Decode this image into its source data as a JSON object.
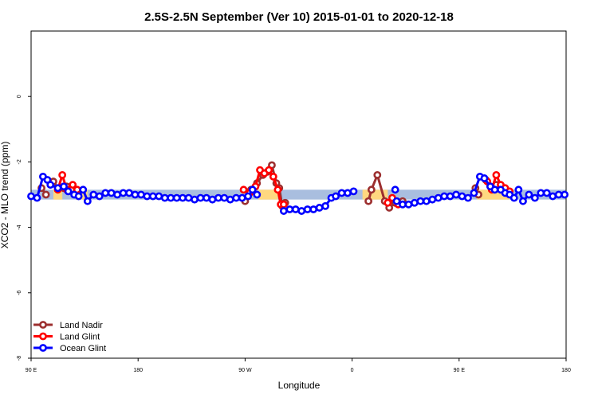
{
  "chart_data": {
    "type": "line",
    "title": "2.5S-2.5N September (Ver 10)   2015-01-01 to 2020-12-18",
    "xlabel": "Longitude",
    "ylabel": "XCO2 - MLO trend (ppm)",
    "xlim": [
      -90,
      270
    ],
    "ylim": [
      -8,
      2
    ],
    "x_ticks": [
      {
        "value": -90,
        "label": "90 E"
      },
      {
        "value": -18,
        "label": "180"
      },
      {
        "value": 54,
        "label": "90 W"
      },
      {
        "value": 126,
        "label": "0"
      },
      {
        "value": 198,
        "label": "90 E"
      },
      {
        "value": 270,
        "label": "180"
      }
    ],
    "y_ticks": [
      {
        "value": 0,
        "label": "0"
      },
      {
        "value": -2,
        "label": "-2"
      },
      {
        "value": -4,
        "label": "-4"
      },
      {
        "value": -6,
        "label": "-6"
      },
      {
        "value": -8,
        "label": "-8"
      }
    ],
    "legend_position": "bottom-left",
    "bands": [
      {
        "x": [
          -90,
          270
        ],
        "y": [
          -3.15,
          -2.85
        ],
        "color": "#a9bedf"
      },
      {
        "x": [
          -75,
          -69
        ],
        "y": [
          -3.15,
          -2.85
        ],
        "color": "#ffd880"
      },
      {
        "x": [
          -60,
          -52
        ],
        "y": [
          -3.15,
          -2.85
        ],
        "color": "#ffd880"
      },
      {
        "x": [
          63,
          76
        ],
        "y": [
          -3.15,
          -2.85
        ],
        "color": "#ffd880"
      },
      {
        "x": [
          133,
          150
        ],
        "y": [
          -3.15,
          -2.85
        ],
        "color": "#ffd880"
      },
      {
        "x": [
          210,
          232
        ],
        "y": [
          -3.15,
          -2.85
        ],
        "color": "#ffd880"
      }
    ],
    "series": [
      {
        "name": "Land Nadir",
        "color": "#9c2f2f",
        "segments": [
          [
            [
              -83,
              -2.8
            ],
            [
              -80,
              -3.0
            ]
          ],
          [
            [
              -75,
              -2.6
            ],
            [
              -72,
              -2.8
            ],
            [
              -68,
              -2.8
            ],
            [
              -66,
              -2.75
            ],
            [
              -63,
              -2.85
            ]
          ],
          [
            [
              54,
              -3.2
            ],
            [
              58,
              -2.85
            ],
            [
              62,
              -2.65
            ],
            [
              66,
              -2.4
            ],
            [
              69,
              -2.3
            ],
            [
              72,
              -2.1
            ],
            [
              75,
              -2.65
            ],
            [
              77,
              -2.8
            ],
            [
              79,
              -3.35
            ],
            [
              81,
              -3.25
            ]
          ],
          [
            [
              137,
              -3.2
            ],
            [
              139,
              -2.85
            ],
            [
              143,
              -2.4
            ],
            [
              148,
              -3.2
            ],
            [
              151,
              -3.4
            ],
            [
              155,
              -3.25
            ],
            [
              160,
              -3.2
            ]
          ],
          [
            [
              209,
              -2.8
            ],
            [
              211,
              -3.0
            ]
          ],
          [
            [
              216,
              -2.55
            ],
            [
              219,
              -2.75
            ],
            [
              223,
              -2.7
            ],
            [
              226,
              -2.8
            ],
            [
              229,
              -2.85
            ]
          ]
        ]
      },
      {
        "name": "Land Glint",
        "color": "#ff0000",
        "segments": [
          [
            [
              -72,
              -2.85
            ],
            [
              -69,
              -2.4
            ],
            [
              -66,
              -2.85
            ],
            [
              -62,
              -2.7
            ],
            [
              -59,
              -2.85
            ]
          ],
          [
            [
              53,
              -2.85
            ],
            [
              57,
              -2.95
            ],
            [
              61,
              -2.75
            ],
            [
              64,
              -2.25
            ],
            [
              67,
              -2.35
            ],
            [
              70,
              -2.25
            ],
            [
              73,
              -2.45
            ],
            [
              76,
              -2.85
            ],
            [
              78,
              -3.3
            ],
            [
              80,
              -3.3
            ]
          ],
          [
            [
              150,
              -3.25
            ],
            [
              153,
              -3.1
            ],
            [
              157,
              -3.3
            ]
          ],
          [
            [
              217,
              -2.6
            ],
            [
              220,
              -2.85
            ],
            [
              223,
              -2.4
            ],
            [
              226,
              -2.7
            ],
            [
              229,
              -2.8
            ],
            [
              232,
              -2.9
            ]
          ]
        ]
      },
      {
        "name": "Ocean Glint",
        "color": "#0000ff",
        "segments": [
          [
            [
              -90,
              -3.05
            ],
            [
              -86,
              -3.1
            ],
            [
              -82,
              -2.45
            ],
            [
              -79,
              -2.55
            ],
            [
              -77,
              -2.7
            ],
            [
              -72,
              -2.8
            ],
            [
              -68,
              -2.75
            ],
            [
              -65,
              -2.9
            ],
            [
              -61,
              -3.0
            ],
            [
              -58,
              -3.05
            ],
            [
              -55,
              -2.85
            ],
            [
              -52,
              -3.2
            ],
            [
              -48,
              -3.0
            ],
            [
              -44,
              -3.05
            ],
            [
              -40,
              -2.95
            ],
            [
              -36,
              -2.95
            ],
            [
              -32,
              -3.0
            ],
            [
              -28,
              -2.95
            ],
            [
              -24,
              -2.95
            ],
            [
              -20,
              -3.0
            ],
            [
              -16,
              -3.0
            ],
            [
              -12,
              -3.05
            ],
            [
              -8,
              -3.05
            ],
            [
              -4,
              -3.05
            ],
            [
              0,
              -3.1
            ],
            [
              4,
              -3.1
            ],
            [
              8,
              -3.1
            ],
            [
              12,
              -3.1
            ],
            [
              16,
              -3.1
            ],
            [
              20,
              -3.15
            ],
            [
              24,
              -3.1
            ],
            [
              28,
              -3.1
            ],
            [
              32,
              -3.15
            ],
            [
              36,
              -3.1
            ],
            [
              40,
              -3.1
            ],
            [
              44,
              -3.15
            ],
            [
              48,
              -3.1
            ],
            [
              52,
              -3.1
            ],
            [
              56,
              -3.05
            ],
            [
              59,
              -2.85
            ],
            [
              62,
              -3.0
            ]
          ],
          [
            [
              80,
              -3.5
            ],
            [
              84,
              -3.45
            ],
            [
              88,
              -3.45
            ],
            [
              92,
              -3.5
            ],
            [
              96,
              -3.45
            ],
            [
              100,
              -3.45
            ],
            [
              104,
              -3.4
            ],
            [
              108,
              -3.35
            ],
            [
              112,
              -3.1
            ],
            [
              115,
              -3.05
            ],
            [
              119,
              -2.95
            ],
            [
              123,
              -2.95
            ],
            [
              127,
              -2.9
            ]
          ],
          [
            [
              155,
              -2.85
            ]
          ],
          [
            [
              156,
              -3.2
            ],
            [
              160,
              -3.3
            ],
            [
              164,
              -3.3
            ],
            [
              168,
              -3.25
            ],
            [
              172,
              -3.2
            ],
            [
              176,
              -3.2
            ],
            [
              180,
              -3.15
            ],
            [
              184,
              -3.1
            ],
            [
              188,
              -3.05
            ],
            [
              192,
              -3.05
            ],
            [
              196,
              -3.0
            ],
            [
              200,
              -3.05
            ],
            [
              204,
              -3.1
            ],
            [
              208,
              -2.95
            ],
            [
              212,
              -2.45
            ],
            [
              215,
              -2.5
            ],
            [
              219,
              -2.75
            ],
            [
              222,
              -2.85
            ],
            [
              226,
              -2.85
            ],
            [
              229,
              -2.95
            ],
            [
              232,
              -3.0
            ],
            [
              235,
              -3.1
            ],
            [
              238,
              -2.85
            ],
            [
              241,
              -3.2
            ],
            [
              245,
              -3.0
            ],
            [
              249,
              -3.1
            ],
            [
              253,
              -2.95
            ],
            [
              257,
              -2.95
            ],
            [
              261,
              -3.05
            ],
            [
              265,
              -3.0
            ],
            [
              269,
              -3.0
            ]
          ]
        ]
      }
    ]
  }
}
